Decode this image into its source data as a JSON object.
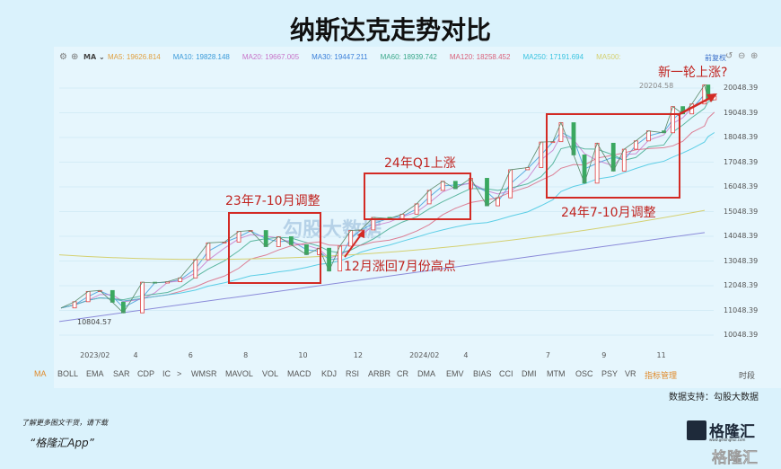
{
  "title": "纳斯达克走势对比",
  "toolbar": {
    "ma_select": "MA",
    "ma_items": [
      {
        "label": "MA5:",
        "value": "19626.814",
        "color": "#e0a040"
      },
      {
        "label": "MA10:",
        "value": "19828.148",
        "color": "#3a9ad9"
      },
      {
        "label": "MA20:",
        "value": "19667.005",
        "color": "#c774c9"
      },
      {
        "label": "MA30:",
        "value": "19447.211",
        "color": "#3a7fd9"
      },
      {
        "label": "MA60:",
        "value": "18939.742",
        "color": "#3aa88a"
      },
      {
        "label": "MA120:",
        "value": "18258.452",
        "color": "#d9607a"
      },
      {
        "label": "MA250:",
        "value": "17191.694",
        "color": "#3ac4e0"
      },
      {
        "label": "MA500:",
        "value": "",
        "color": "#d4d070"
      }
    ],
    "adjust": "前复权"
  },
  "chart_data": {
    "type": "line",
    "title": "纳斯达克走势对比",
    "ylim": [
      9600,
      20700
    ],
    "yticks": [
      "20048.39",
      "19048.39",
      "18048.39",
      "17048.39",
      "16048.39",
      "15048.39",
      "14048.39",
      "13048.39",
      "12048.39",
      "11048.39",
      "10048.39"
    ],
    "xticks": [
      {
        "label": "2023/02",
        "date": "2023-02"
      },
      {
        "label": "4",
        "date": "2023-04"
      },
      {
        "label": "6",
        "date": "2023-06"
      },
      {
        "label": "8",
        "date": "2023-08"
      },
      {
        "label": "10",
        "date": "2023-10"
      },
      {
        "label": "12",
        "date": "2023-12"
      },
      {
        "label": "2024/02",
        "date": "2024-02"
      },
      {
        "label": "4",
        "date": "2024-04"
      },
      {
        "label": "7",
        "date": "2024-07"
      },
      {
        "label": "9",
        "date": "2024-09"
      },
      {
        "label": "11",
        "date": "2024-11"
      }
    ],
    "series": [
      {
        "dates": [
          "2023-01-03",
          "2023-01-18",
          "2023-02-02",
          "2023-02-15",
          "2023-03-01",
          "2023-03-13",
          "2023-04-03",
          "2023-04-17",
          "2023-05-01",
          "2023-05-15",
          "2023-06-01",
          "2023-06-15",
          "2023-07-03",
          "2023-07-19",
          "2023-08-01",
          "2023-08-18",
          "2023-09-01",
          "2023-09-15",
          "2023-10-02",
          "2023-10-16",
          "2023-10-27",
          "2023-11-08",
          "2023-11-20",
          "2023-12-01",
          "2023-12-15",
          "2024-01-02",
          "2024-01-16",
          "2024-02-01",
          "2024-02-15",
          "2024-03-01",
          "2024-03-15",
          "2024-04-01",
          "2024-04-19",
          "2024-05-01",
          "2024-05-15",
          "2024-06-03",
          "2024-06-18",
          "2024-07-01",
          "2024-07-10",
          "2024-07-24",
          "2024-08-05",
          "2024-08-19",
          "2024-09-06",
          "2024-09-18",
          "2024-10-01",
          "2024-10-15",
          "2024-11-01",
          "2024-11-11",
          "2024-11-22",
          "2024-12-02",
          "2024-12-16",
          "2024-12-20",
          "2024-12-27"
        ],
        "values": [
          11150,
          11400,
          11816,
          11855,
          11379,
          10950,
          12189,
          12157,
          12212,
          12365,
          13101,
          13782,
          13816,
          14244,
          14283,
          13631,
          14031,
          13708,
          13307,
          13567,
          12643,
          13650,
          14284,
          14305,
          14813,
          14765,
          14944,
          15361,
          15906,
          16274,
          15973,
          16396,
          15282,
          15605,
          16742,
          16828,
          17862,
          17879,
          18647,
          17342,
          16200,
          17816,
          16690,
          17573,
          17910,
          18315,
          18239,
          19298,
          19003,
          19404,
          20173,
          19572,
          19722
        ]
      }
    ],
    "annotations": {
      "low": "10804.57",
      "high": "20204.58"
    }
  },
  "annotations": {
    "a1": "23年7-10月调整",
    "a2": "24年Q1上涨",
    "a3": "24年7-10月调整",
    "a4": "12月涨回7月份高点",
    "a5": "新一轮上涨?"
  },
  "watermark": "勾股大数据",
  "indicators": [
    "MA",
    "BOLL",
    "EMA",
    "SAR",
    "CDP",
    "IC",
    ">",
    "WMSR",
    "MAVOL",
    "VOL",
    "MACD",
    "KDJ",
    "RSI",
    "ARBR",
    "CR",
    "DMA",
    "EMV",
    "BIAS",
    "CCI",
    "DMI",
    "MTM",
    "OSC",
    "PSY",
    "VR",
    "指标管理",
    "时段"
  ],
  "source": "数据支持：勾股大数据",
  "footer": {
    "line1": "了解更多图文干货，请下载",
    "line2": "“格隆汇App”",
    "logo": "格隆汇",
    "logo_url": "www.gelonghui.com"
  }
}
